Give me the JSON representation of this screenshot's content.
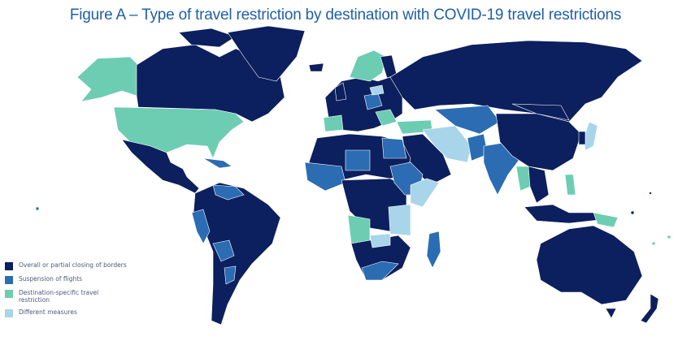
{
  "title": "Figure A – Type of travel restriction by destination with COVID-19 travel restrictions",
  "legend": [
    {
      "label": "Overall or partial closing of borders",
      "color": "#0c1f5e"
    },
    {
      "label": "Suspension of flights",
      "color": "#2b6cb3"
    },
    {
      "label": "Destination-specific travel restriction",
      "color": "#6ccdb2"
    },
    {
      "label": "Different measures",
      "color": "#a8d5ea"
    }
  ]
}
